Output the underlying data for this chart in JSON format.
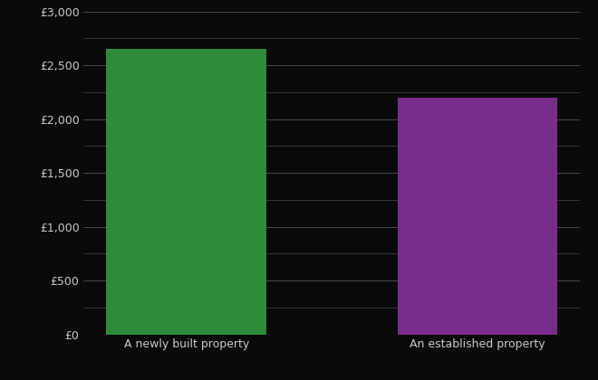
{
  "categories": [
    "A newly built property",
    "An established property"
  ],
  "values": [
    2650,
    2200
  ],
  "bar_colors": [
    "#2e8b3a",
    "#7b2d8b"
  ],
  "background_color": "#0a0a0a",
  "text_color": "#c8c8c8",
  "grid_color": "#484848",
  "ylim": [
    0,
    3000
  ],
  "yticks_major": [
    0,
    500,
    1000,
    1500,
    2000,
    2500,
    3000
  ],
  "yticks_minor": [
    250,
    750,
    1250,
    1750,
    2250,
    2750
  ],
  "figsize": [
    6.6,
    4.2
  ],
  "dpi": 100,
  "bar_width": 0.55
}
